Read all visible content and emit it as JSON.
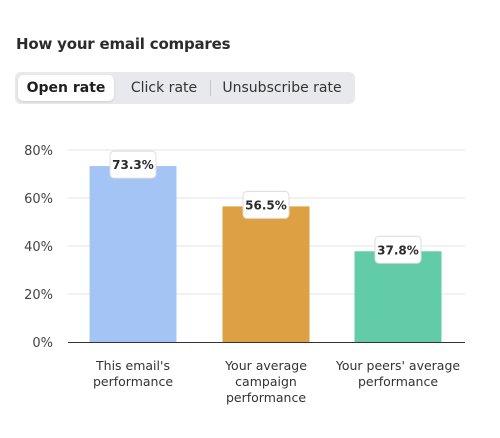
{
  "heading": "How your email compares",
  "tabs": [
    {
      "label": "Open rate",
      "active": true
    },
    {
      "label": "Click rate",
      "active": false
    },
    {
      "label": "Unsubscribe rate",
      "active": false
    }
  ],
  "colors": {
    "bar_email": "#a3c4f5",
    "bar_average": "#dda042",
    "bar_peers": "#62cca9",
    "grid": "#e6e6e6",
    "axis": "#333333"
  },
  "chart_data": {
    "type": "bar",
    "categories": [
      [
        "This email's",
        "performance"
      ],
      [
        "Your average",
        "campaign",
        "performance"
      ],
      [
        "Your peers' average",
        "performance"
      ]
    ],
    "values": [
      73.3,
      56.5,
      37.8
    ],
    "data_labels": [
      "73.3%",
      "56.5%",
      "37.8%"
    ],
    "ylim": [
      0,
      80
    ],
    "yticks": [
      0,
      20,
      40,
      60,
      80
    ],
    "ytick_labels": [
      "0%",
      "20%",
      "40%",
      "60%",
      "80%"
    ],
    "grid": true,
    "title": "",
    "xlabel": "",
    "ylabel": ""
  }
}
